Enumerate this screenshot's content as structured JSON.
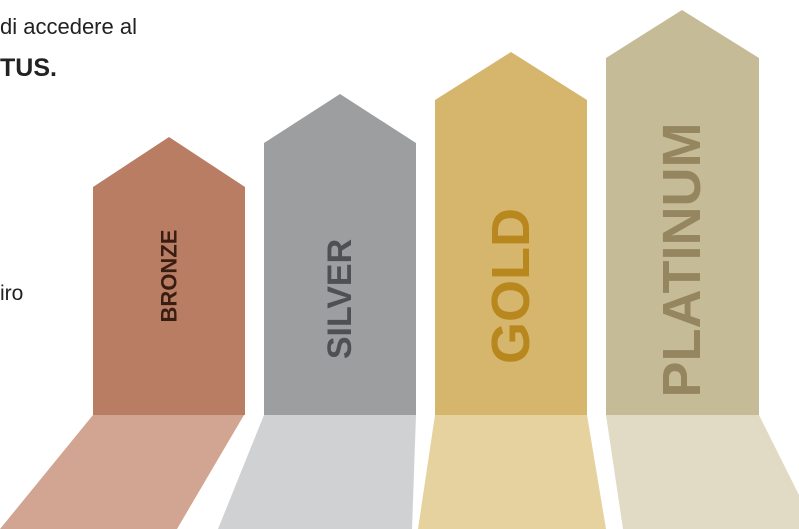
{
  "text": {
    "intro_line_1": "di accedere al",
    "intro_line_2": "TUS.",
    "side_fragment": "iro"
  },
  "tiers": [
    {
      "label": "BRONZE",
      "arrow_color": "#b97d64",
      "floor_color": "#d1a591",
      "label_color": "#3a1d12"
    },
    {
      "label": "SILVER",
      "arrow_color": "#9d9ea0",
      "floor_color": "#d0d1d3",
      "label_color": "#4e5053"
    },
    {
      "label": "GOLD",
      "arrow_color": "#d6b66d",
      "floor_color": "#e6d29f",
      "label_color": "#b8871d"
    },
    {
      "label": "PLATINUM",
      "arrow_color": "#c6bb97",
      "floor_color": "#e1dac5",
      "label_color": "#958660"
    }
  ]
}
